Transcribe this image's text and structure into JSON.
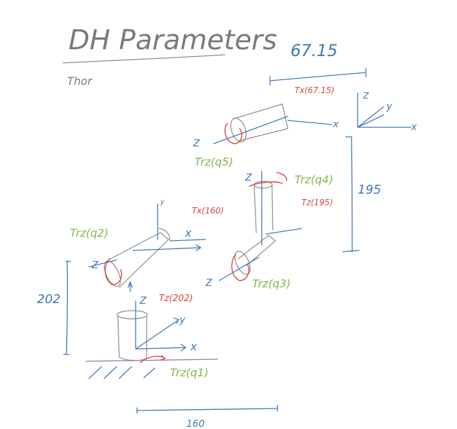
{
  "title": "DH Parameters",
  "author": "Thor",
  "colors": {
    "pencil": "#8a8a8a",
    "axis_blue": "#3f78b8",
    "translation_red": "#d4483f",
    "rotation_green": "#84b84a"
  },
  "dimensions": {
    "top_offset": "67.15",
    "right_height": "195",
    "base_height": "202",
    "bottom_length": "160"
  },
  "labels": {
    "tx_67": "Tx(67.15)",
    "tz_195": "Tz(195)",
    "tx_160": "Tx(160)",
    "tz_202": "Tz(202)",
    "rz_q1": "Trz(q1)",
    "rz_q2": "Trz(q2)",
    "rz_q3": "Trz(q3)",
    "rz_q4": "Trz(q4)",
    "rz_q5": "Trz(q5)",
    "ax_z": "Z",
    "ax_x": "x",
    "ax_y": "y"
  }
}
